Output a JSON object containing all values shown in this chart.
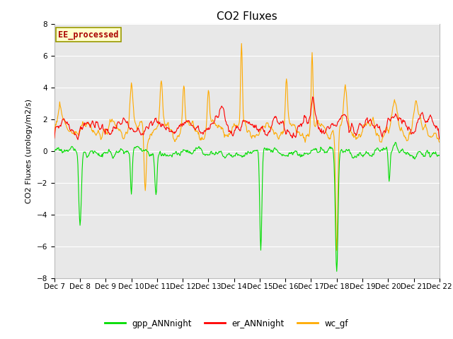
{
  "title": "CO2 Fluxes",
  "ylabel": "CO2 Fluxes (urology/m2/s)",
  "xlabel": "",
  "ylim": [
    -8,
    8
  ],
  "yticks": [
    -8,
    -6,
    -4,
    -2,
    0,
    2,
    4,
    6,
    8
  ],
  "xlim": [
    0,
    360
  ],
  "xtick_positions": [
    0,
    24,
    48,
    72,
    96,
    120,
    144,
    168,
    192,
    216,
    240,
    264,
    288,
    312,
    336,
    360
  ],
  "xtick_labels": [
    "Dec 7",
    "Dec 8",
    "Dec 9",
    "Dec 10",
    "Dec 11",
    "Dec 12",
    "Dec 13",
    "Dec 14",
    "Dec 15",
    "Dec 16",
    "Dec 17",
    "Dec 18",
    "Dec 19",
    "Dec 20",
    "Dec 21",
    "Dec 22"
  ],
  "bg_color": "#e8e8e8",
  "fig_bg_color": "#ffffff",
  "line_green_color": "#00dd00",
  "line_red_color": "#ff0000",
  "line_orange_color": "#ffaa00",
  "line_width": 0.8,
  "legend_labels": [
    "gpp_ANNnight",
    "er_ANNnight",
    "wc_gf"
  ],
  "annotation_text": "EE_processed",
  "annotation_bg": "#ffffcc",
  "annotation_border": "#999900",
  "title_fontsize": 11,
  "label_fontsize": 8,
  "tick_fontsize": 7.5
}
